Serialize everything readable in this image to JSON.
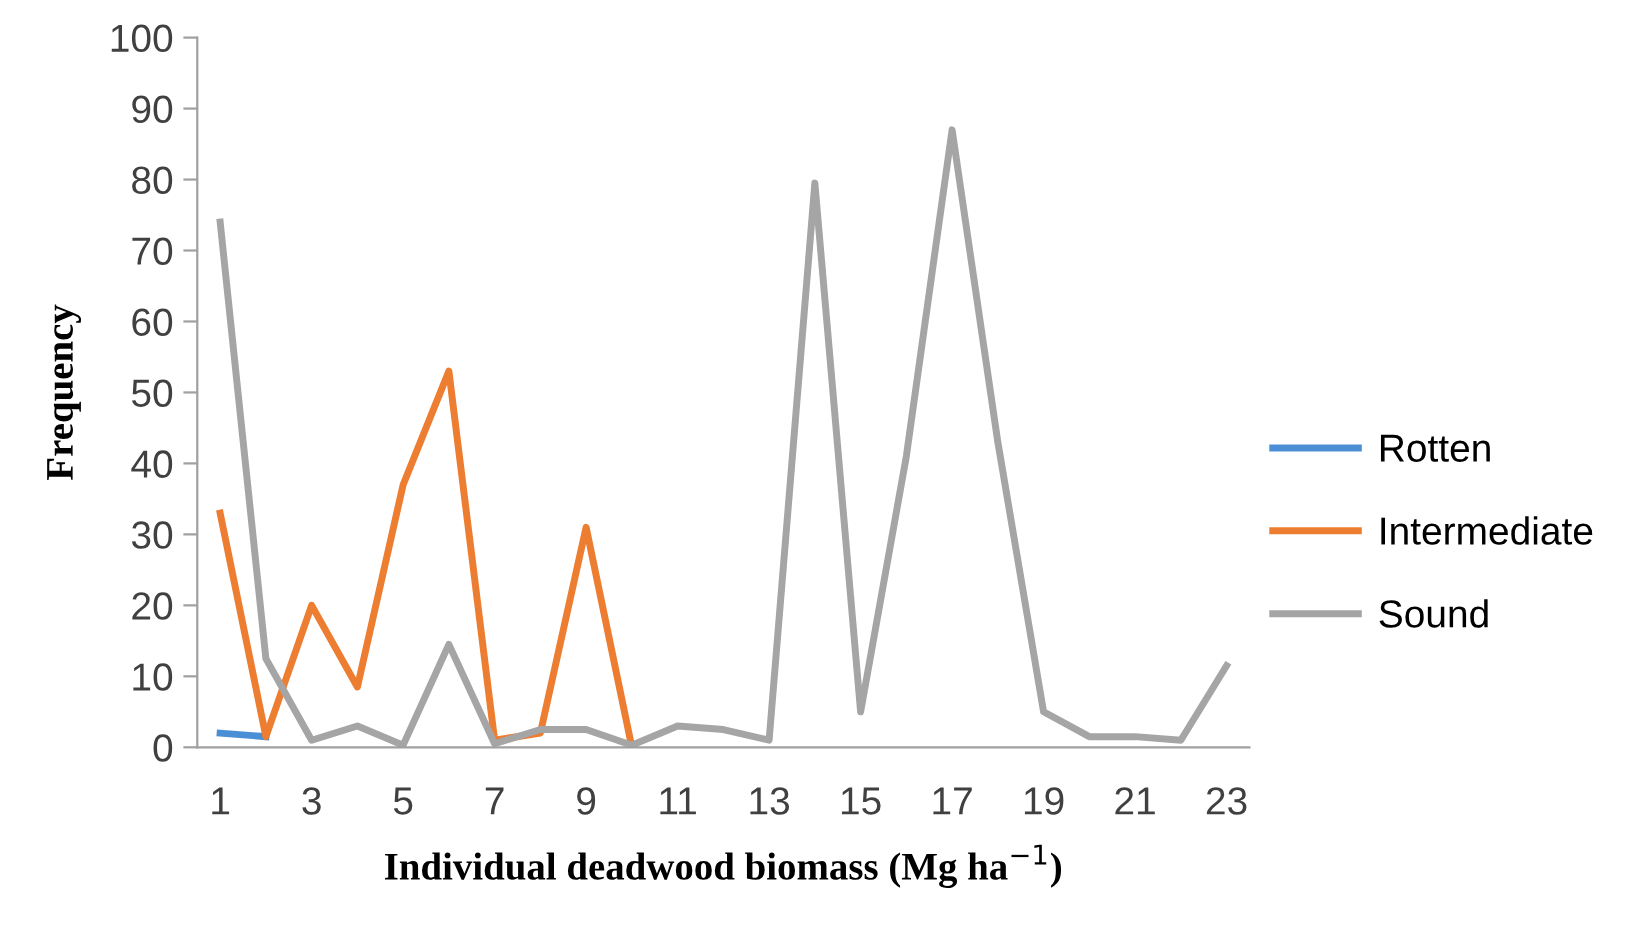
{
  "chart_data": {
    "type": "line",
    "xlabel": "Individual deadwood biomass (Mg ha$^{−1}$)",
    "ylabel": "Frequency",
    "categories": [
      "1",
      null,
      "3",
      null,
      "5",
      null,
      "7",
      null,
      "9",
      null,
      "11",
      null,
      "13",
      null,
      "15",
      null,
      "17",
      null,
      "19",
      null,
      "21",
      null,
      "23"
    ],
    "series": [
      {
        "name": "Rotten",
        "color": "#4a8fd6",
        "values": [
          2,
          1.5,
          null,
          null,
          null,
          null,
          null,
          null,
          null,
          null,
          null,
          null,
          null,
          null,
          null,
          null,
          null,
          null,
          null,
          null,
          null,
          null,
          null
        ]
      },
      {
        "name": "Intermediate",
        "color": "#ed7d31",
        "values": [
          33,
          1.5,
          20,
          8.5,
          37,
          53,
          1,
          2,
          31,
          0,
          null,
          null,
          null,
          null,
          null,
          null,
          null,
          null,
          null,
          null,
          null,
          null,
          null
        ]
      },
      {
        "name": "Sound",
        "color": "#a5a5a5",
        "values": [
          74,
          12.5,
          1,
          3,
          0.3,
          14.5,
          0.5,
          2.5,
          2.5,
          0.3,
          3,
          2.5,
          1,
          79.5,
          5,
          41,
          87,
          43,
          5,
          1.5,
          1.5,
          1,
          11.5
        ]
      }
    ],
    "ylim": [
      0,
      100
    ],
    "yticks": [
      0,
      10,
      20,
      30,
      40,
      50,
      60,
      70,
      80,
      90,
      100
    ],
    "grid": false,
    "legend": "right",
    "marker": "none",
    "line_style": "solid"
  }
}
